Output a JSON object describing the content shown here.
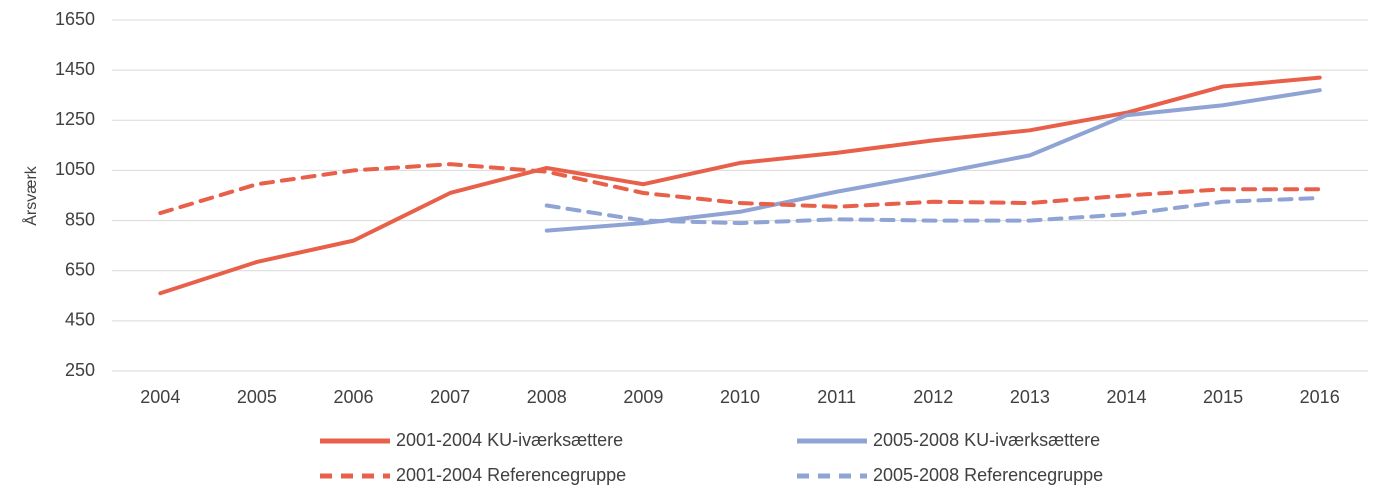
{
  "chart_data": {
    "type": "line",
    "y_label": "Årsværk",
    "categories": [
      "2004",
      "2005",
      "2006",
      "2007",
      "2008",
      "2009",
      "2010",
      "2011",
      "2012",
      "2013",
      "2014",
      "2015",
      "2016"
    ],
    "series": [
      {
        "name": "2001-2004 KU-iværksættere",
        "color": "#e8604a",
        "dash": false,
        "values": [
          560,
          685,
          770,
          960,
          1060,
          995,
          1080,
          1120,
          1170,
          1210,
          1280,
          1385,
          1420
        ]
      },
      {
        "name": "2005-2008 KU-iværksættere",
        "color": "#8fa3d4",
        "dash": false,
        "values": [
          null,
          null,
          null,
          null,
          810,
          840,
          885,
          965,
          1035,
          1110,
          1270,
          1310,
          1370
        ]
      },
      {
        "name": "2001-2004 Referencegruppe",
        "color": "#e8604a",
        "dash": true,
        "values": [
          880,
          995,
          1050,
          1075,
          1045,
          960,
          920,
          905,
          925,
          920,
          950,
          975,
          975
        ]
      },
      {
        "name": "2005-2008 Referencegruppe",
        "color": "#8fa3d4",
        "dash": true,
        "values": [
          null,
          null,
          null,
          null,
          910,
          850,
          840,
          855,
          850,
          850,
          875,
          925,
          940
        ]
      }
    ],
    "ylim": [
      250,
      1650
    ],
    "yticks": [
      250,
      450,
      650,
      850,
      1050,
      1250,
      1450,
      1650
    ],
    "grid": true,
    "legend": "bottom"
  }
}
